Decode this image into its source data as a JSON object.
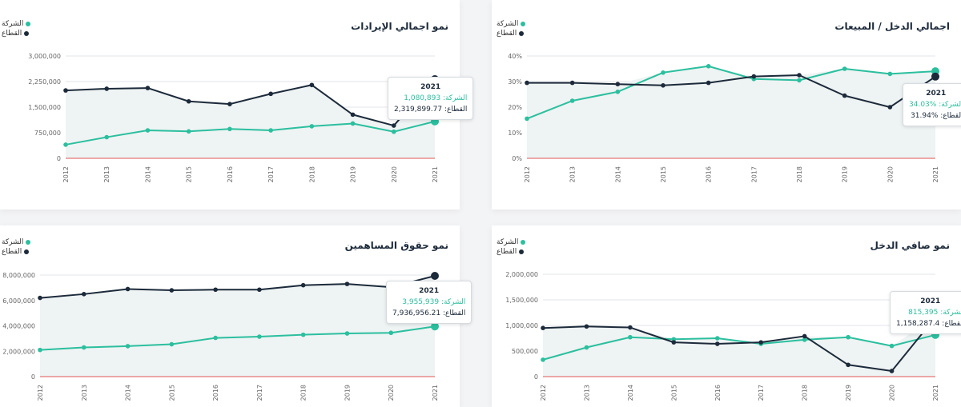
{
  "legend": {
    "company": "الشركة",
    "sector": "القطاع"
  },
  "colors": {
    "company": "#2bbf9e",
    "sector": "#1c2a3a",
    "zero_line": "#e05555",
    "grid": "#e3e6ea",
    "fill": "#eef3f3"
  },
  "chart_data": [
    {
      "type": "line",
      "title": "نمو اجمالي الإيرادات",
      "x": [
        "2012",
        "2013",
        "2014",
        "2015",
        "2016",
        "2017",
        "2018",
        "2019",
        "2020",
        "2021"
      ],
      "ylim": [
        0,
        3000000
      ],
      "yticks": [
        "0",
        "750,000",
        "1,500,000",
        "2,250,000",
        "3,000,000"
      ],
      "ytick_values": [
        0,
        750000,
        1500000,
        2250000,
        3000000
      ],
      "series": [
        {
          "name": "الشركة",
          "values": [
            400000,
            620000,
            820000,
            790000,
            860000,
            820000,
            940000,
            1020000,
            780000,
            1080893
          ]
        },
        {
          "name": "القطاع",
          "values": [
            1990000,
            2040000,
            2060000,
            1670000,
            1590000,
            1890000,
            2150000,
            1280000,
            960000,
            2319899.77
          ]
        }
      ],
      "tooltip": {
        "year": "2021",
        "company_label": "الشركة:",
        "company_value": "1,080,893",
        "sector_label": "القطاع:",
        "sector_value": "2,319,899.77"
      }
    },
    {
      "type": "line",
      "title": "اجمالي الدخل / المبيعات",
      "x": [
        "2012",
        "2013",
        "2014",
        "2015",
        "2016",
        "2017",
        "2018",
        "2019",
        "2020",
        "2021"
      ],
      "ylim": [
        0,
        40
      ],
      "yticks": [
        "0%",
        "10%",
        "20%",
        "30%",
        "40%"
      ],
      "ytick_values": [
        0,
        10,
        20,
        30,
        40
      ],
      "series": [
        {
          "name": "الشركة",
          "values": [
            15.5,
            22.5,
            26,
            33.5,
            36,
            31,
            30.5,
            35,
            33,
            34.03
          ]
        },
        {
          "name": "القطاع",
          "values": [
            29.5,
            29.5,
            29,
            28.5,
            29.5,
            32,
            32.5,
            24.5,
            20,
            31.94
          ]
        }
      ],
      "tooltip": {
        "year": "2021",
        "company_label": "الشركة:",
        "company_value": "%34.03",
        "sector_label": "القطاع:",
        "sector_value": "%31.94"
      }
    },
    {
      "type": "line",
      "title": "نمو حقوق المساهمين",
      "x": [
        "2012",
        "2013",
        "2014",
        "2015",
        "2016",
        "2017",
        "2018",
        "2019",
        "2020",
        "2021"
      ],
      "ylim": [
        0,
        8000000
      ],
      "yticks": [
        "0",
        "2,000,000",
        "4,000,000",
        "6,000,000",
        "8,000,000"
      ],
      "ytick_values": [
        0,
        2000000,
        4000000,
        6000000,
        8000000
      ],
      "series": [
        {
          "name": "الشركة",
          "values": [
            2100000,
            2300000,
            2400000,
            2550000,
            3050000,
            3150000,
            3300000,
            3400000,
            3450000,
            3955939
          ]
        },
        {
          "name": "القطاع",
          "values": [
            6200000,
            6500000,
            6900000,
            6800000,
            6850000,
            6850000,
            7200000,
            7300000,
            7050000,
            7936956.21
          ]
        }
      ],
      "tooltip": {
        "year": "2021",
        "company_label": "الشركة:",
        "company_value": "3,955,939",
        "sector_label": "القطاع:",
        "sector_value": "7,936,956.21"
      }
    },
    {
      "type": "line",
      "title": "نمو صافي الدخل",
      "x": [
        "2012",
        "2013",
        "2014",
        "2015",
        "2016",
        "2017",
        "2018",
        "2019",
        "2020",
        "2021"
      ],
      "ylim": [
        0,
        2000000
      ],
      "yticks": [
        "0",
        "500,000",
        "1,000,000",
        "1,500,000",
        "2,000,000"
      ],
      "ytick_values": [
        0,
        500000,
        1000000,
        1500000,
        2000000
      ],
      "series": [
        {
          "name": "الشركة",
          "values": [
            330000,
            570000,
            770000,
            730000,
            750000,
            640000,
            720000,
            770000,
            600000,
            815395
          ]
        },
        {
          "name": "القطاع",
          "values": [
            950000,
            980000,
            960000,
            670000,
            640000,
            670000,
            790000,
            230000,
            110000,
            1158287.4
          ]
        }
      ],
      "tooltip": {
        "year": "2021",
        "company_label": "الشركة:",
        "company_value": "815,395",
        "sector_label": "القطاع:",
        "sector_value": "1,158,287.4"
      }
    }
  ]
}
